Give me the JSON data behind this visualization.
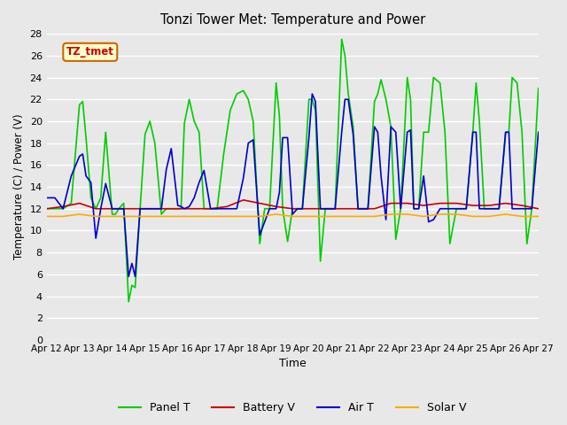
{
  "title": "Tonzi Tower Met: Temperature and Power",
  "xlabel": "Time",
  "ylabel": "Temperature (C) / Power (V)",
  "xlim": [
    0,
    15
  ],
  "ylim": [
    0,
    28
  ],
  "yticks": [
    0,
    2,
    4,
    6,
    8,
    10,
    12,
    14,
    16,
    18,
    20,
    22,
    24,
    26,
    28
  ],
  "xtick_labels": [
    "Apr 12",
    "Apr 13",
    "Apr 14",
    "Apr 15",
    "Apr 16",
    "Apr 17",
    "Apr 18",
    "Apr 19",
    "Apr 20",
    "Apr 21",
    "Apr 22",
    "Apr 23",
    "Apr 24",
    "Apr 25",
    "Apr 26",
    "Apr 27"
  ],
  "bg_color": "#e8e8e8",
  "plot_bg_color": "#e8e8e8",
  "grid_color": "white",
  "annotation_text": "TZ_tmet",
  "annotation_bg": "#ffffcc",
  "annotation_border": "#cc6600",
  "legend_colors": [
    "#00cc00",
    "#cc0000",
    "#0000cc",
    "#ffaa00"
  ],
  "legend_labels": [
    "Panel T",
    "Battery V",
    "Air T",
    "Solar V"
  ],
  "panel_t_x": [
    0.0,
    0.25,
    0.5,
    0.75,
    1.0,
    1.1,
    1.2,
    1.35,
    1.5,
    1.65,
    1.8,
    2.0,
    2.1,
    2.2,
    2.35,
    2.5,
    2.6,
    2.7,
    2.85,
    3.0,
    3.15,
    3.3,
    3.5,
    3.65,
    3.8,
    4.0,
    4.1,
    4.2,
    4.35,
    4.5,
    4.65,
    4.8,
    5.0,
    5.2,
    5.4,
    5.6,
    5.8,
    6.0,
    6.15,
    6.3,
    6.5,
    6.65,
    6.8,
    7.0,
    7.1,
    7.2,
    7.35,
    7.5,
    7.65,
    7.8,
    8.0,
    8.1,
    8.2,
    8.35,
    8.5,
    8.65,
    8.8,
    9.0,
    9.1,
    9.2,
    9.35,
    9.5,
    9.65,
    9.8,
    10.0,
    10.1,
    10.2,
    10.35,
    10.5,
    10.65,
    10.8,
    11.0,
    11.1,
    11.2,
    11.35,
    11.5,
    11.65,
    11.8,
    12.0,
    12.15,
    12.3,
    12.5,
    12.65,
    12.8,
    13.0,
    13.1,
    13.2,
    13.35,
    13.5,
    13.65,
    13.8,
    14.0,
    14.1,
    14.2,
    14.35,
    14.5,
    14.65,
    14.8,
    15.0
  ],
  "panel_t_y": [
    12.0,
    12.0,
    12.0,
    12.5,
    21.5,
    21.8,
    18.5,
    13.0,
    12.0,
    13.0,
    19.0,
    11.5,
    11.5,
    12.0,
    12.5,
    3.5,
    5.0,
    4.8,
    12.0,
    18.8,
    20.0,
    18.0,
    11.5,
    12.0,
    12.0,
    12.0,
    12.0,
    19.8,
    22.0,
    20.0,
    19.0,
    12.0,
    12.0,
    12.0,
    17.0,
    21.0,
    22.5,
    22.8,
    22.0,
    20.0,
    8.8,
    12.0,
    12.0,
    23.5,
    20.5,
    12.0,
    9.0,
    12.0,
    12.0,
    12.0,
    22.0,
    22.0,
    21.0,
    7.2,
    12.0,
    12.0,
    12.0,
    27.5,
    26.0,
    22.5,
    19.5,
    12.0,
    12.0,
    12.0,
    21.8,
    22.5,
    23.8,
    22.0,
    19.5,
    9.2,
    12.0,
    24.0,
    22.0,
    12.0,
    12.0,
    19.0,
    19.0,
    24.0,
    23.5,
    19.0,
    8.8,
    12.0,
    12.0,
    12.0,
    19.0,
    23.5,
    20.0,
    12.0,
    12.0,
    12.0,
    12.0,
    19.0,
    19.0,
    24.0,
    23.5,
    19.0,
    8.8,
    12.0,
    23.0
  ],
  "battery_v_x": [
    0.0,
    0.5,
    1.0,
    1.5,
    2.0,
    2.5,
    3.0,
    3.5,
    4.0,
    4.5,
    5.0,
    5.5,
    6.0,
    6.5,
    7.0,
    7.5,
    8.0,
    8.5,
    9.0,
    9.5,
    10.0,
    10.5,
    11.0,
    11.5,
    12.0,
    12.5,
    13.0,
    13.5,
    14.0,
    14.5,
    15.0
  ],
  "battery_v_y": [
    12.0,
    12.2,
    12.5,
    12.0,
    12.0,
    12.0,
    12.0,
    12.0,
    12.0,
    12.0,
    12.0,
    12.2,
    12.8,
    12.5,
    12.2,
    12.0,
    12.0,
    12.0,
    12.0,
    12.0,
    12.0,
    12.5,
    12.5,
    12.3,
    12.5,
    12.5,
    12.3,
    12.3,
    12.5,
    12.3,
    12.0
  ],
  "air_t_x": [
    0.0,
    0.25,
    0.5,
    0.75,
    1.0,
    1.1,
    1.2,
    1.35,
    1.5,
    1.65,
    1.8,
    2.0,
    2.1,
    2.2,
    2.35,
    2.5,
    2.6,
    2.7,
    2.85,
    3.0,
    3.15,
    3.3,
    3.5,
    3.65,
    3.8,
    4.0,
    4.1,
    4.2,
    4.35,
    4.5,
    4.65,
    4.8,
    5.0,
    5.2,
    5.4,
    5.6,
    5.8,
    6.0,
    6.15,
    6.3,
    6.5,
    6.65,
    6.8,
    7.0,
    7.1,
    7.2,
    7.35,
    7.5,
    7.65,
    7.8,
    8.0,
    8.1,
    8.2,
    8.35,
    8.5,
    8.65,
    8.8,
    9.0,
    9.1,
    9.2,
    9.35,
    9.5,
    9.65,
    9.8,
    10.0,
    10.1,
    10.2,
    10.35,
    10.5,
    10.65,
    10.8,
    11.0,
    11.1,
    11.2,
    11.35,
    11.5,
    11.65,
    11.8,
    12.0,
    12.15,
    12.3,
    12.5,
    12.65,
    12.8,
    13.0,
    13.1,
    13.2,
    13.35,
    13.5,
    13.65,
    13.8,
    14.0,
    14.1,
    14.2,
    14.35,
    14.5,
    14.65,
    14.8,
    15.0
  ],
  "air_t_y": [
    13.0,
    13.0,
    12.0,
    15.0,
    16.8,
    17.0,
    15.0,
    14.4,
    9.3,
    12.0,
    14.3,
    12.0,
    12.0,
    12.0,
    12.0,
    5.8,
    7.0,
    5.8,
    12.0,
    12.0,
    12.0,
    12.0,
    12.0,
    15.6,
    17.5,
    12.3,
    12.2,
    12.0,
    12.2,
    13.0,
    14.4,
    15.5,
    12.0,
    12.0,
    12.0,
    12.0,
    12.0,
    14.8,
    18.0,
    18.3,
    9.6,
    10.8,
    12.0,
    12.0,
    13.5,
    18.5,
    18.5,
    11.5,
    12.0,
    12.0,
    18.5,
    22.5,
    21.8,
    12.0,
    12.0,
    12.0,
    12.0,
    19.0,
    22.0,
    22.0,
    18.8,
    12.0,
    12.0,
    12.0,
    19.5,
    19.0,
    15.0,
    11.0,
    19.5,
    19.0,
    12.0,
    19.0,
    19.2,
    12.0,
    12.0,
    15.0,
    10.8,
    11.0,
    12.0,
    12.0,
    12.0,
    12.0,
    12.0,
    12.0,
    19.0,
    19.0,
    12.0,
    12.0,
    12.0,
    12.0,
    12.0,
    19.0,
    19.0,
    12.0,
    12.0,
    12.0,
    12.0,
    12.0,
    19.0
  ],
  "solar_v_x": [
    0.0,
    0.5,
    1.0,
    1.5,
    2.0,
    2.5,
    3.0,
    3.5,
    4.0,
    4.5,
    5.0,
    5.5,
    6.0,
    6.5,
    7.0,
    7.5,
    8.0,
    8.5,
    9.0,
    9.5,
    10.0,
    10.5,
    11.0,
    11.5,
    12.0,
    12.5,
    13.0,
    13.5,
    14.0,
    14.5,
    15.0
  ],
  "solar_v_y": [
    11.3,
    11.3,
    11.5,
    11.3,
    11.3,
    11.3,
    11.3,
    11.3,
    11.3,
    11.3,
    11.3,
    11.3,
    11.3,
    11.3,
    11.5,
    11.3,
    11.3,
    11.3,
    11.3,
    11.3,
    11.3,
    11.5,
    11.5,
    11.3,
    11.5,
    11.5,
    11.3,
    11.3,
    11.5,
    11.3,
    11.3
  ]
}
